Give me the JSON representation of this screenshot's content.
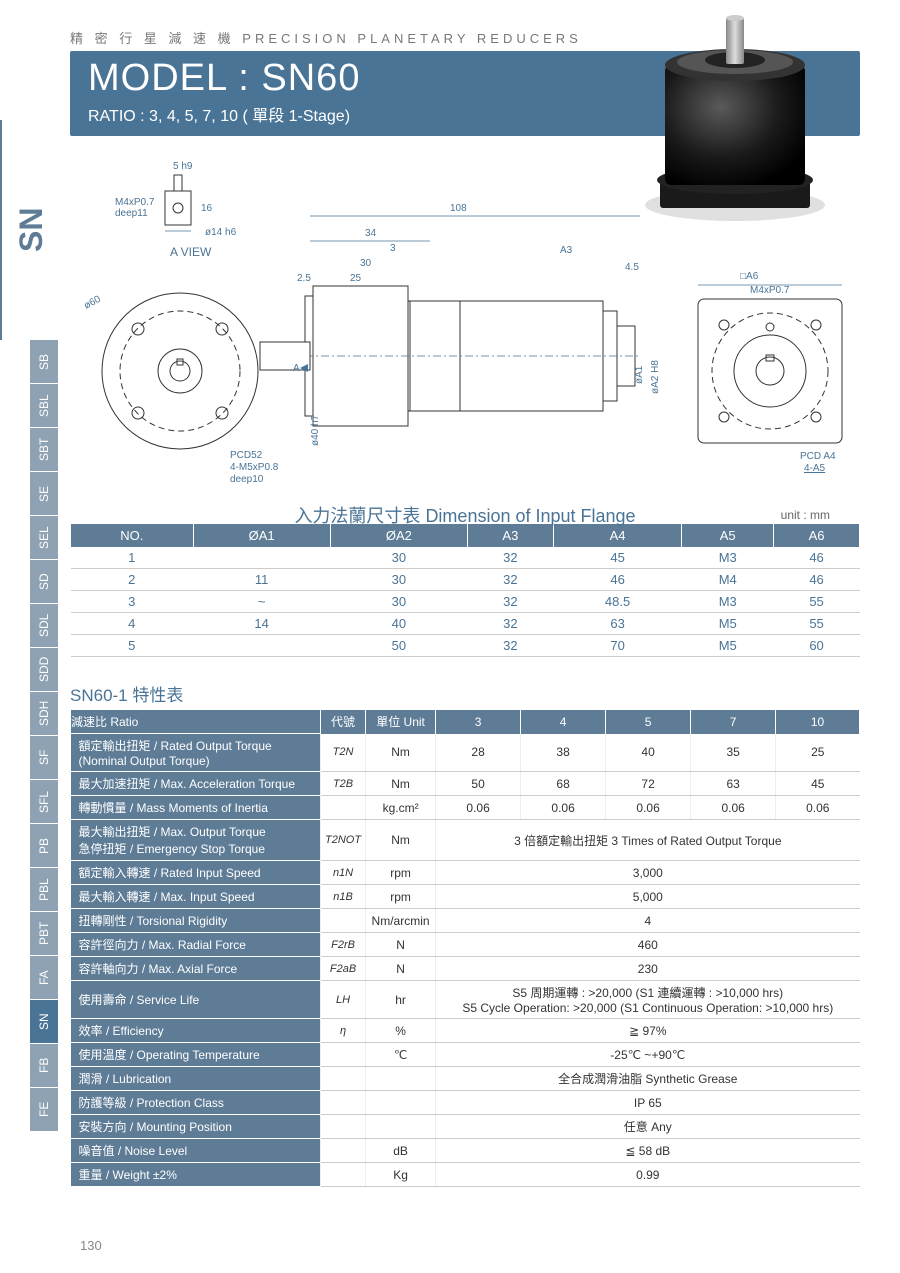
{
  "header": {
    "supertitle": "精 密 行 星 減 速 機  PRECISION PLANETARY REDUCERS",
    "model": "MODEL : SN60",
    "ratio": "RATIO : 3, 4, 5, 7, 10 ( 單段 1-Stage)"
  },
  "side": {
    "big": "SN",
    "tabs": [
      "SB",
      "SBL",
      "SBT",
      "SE",
      "SEL",
      "SD",
      "SDL",
      "SDD",
      "SDH",
      "SF",
      "SFL",
      "PB",
      "PBL",
      "PBT",
      "FA",
      "SN",
      "FB",
      "FE"
    ],
    "active": "SN"
  },
  "diagram": {
    "a_view_label": "A VIEW",
    "top_shaft": "5 h9",
    "m4": "M4xP0.7",
    "deep11": "deep11",
    "phi14": "ø14 h6",
    "sixteen": "16",
    "phi60": "ø60",
    "pcd52": "PCD52",
    "m5": "4-M5xP0.8",
    "deep10": "deep10",
    "len108": "108",
    "len34": "34",
    "len3": "3",
    "len30": "30",
    "len25": "25",
    "len2_5": "2.5",
    "len4_5": "4.5",
    "a3": "A3",
    "phi40": "ø40 h7",
    "a_arrow": "A",
    "phi_a1": "øA1",
    "phi_a2": "øA2 H8",
    "sq_a6": "□A6",
    "m4r": "M4xP0.7",
    "pcd_a4": "PCD A4",
    "four_a5": "4-A5"
  },
  "dim_table": {
    "title": "入力法蘭尺寸表 Dimension of Input Flange",
    "unit": "unit : mm",
    "headers": [
      "NO.",
      "ØA1",
      "ØA2",
      "A3",
      "A4",
      "A5",
      "A6"
    ],
    "rows": [
      [
        "1",
        "",
        "30",
        "32",
        "45",
        "M3",
        "46"
      ],
      [
        "2",
        "11",
        "30",
        "32",
        "46",
        "M4",
        "46"
      ],
      [
        "3",
        "~",
        "30",
        "32",
        "48.5",
        "M3",
        "55"
      ],
      [
        "4",
        "14",
        "40",
        "32",
        "63",
        "M5",
        "55"
      ],
      [
        "5",
        "",
        "50",
        "32",
        "70",
        "M5",
        "60"
      ]
    ]
  },
  "spec": {
    "title": "SN60-1 特性表",
    "header_row": {
      "ratio": "減速比 Ratio",
      "sym": "代號",
      "unit": "單位 Unit",
      "vals": [
        "3",
        "4",
        "5",
        "7",
        "10"
      ]
    },
    "rows": [
      {
        "label": "額定輸出扭矩 / Rated Output Torque\n(Nominal Output Torque)",
        "sym": "T2N",
        "unit": "Nm",
        "vals": [
          "28",
          "38",
          "40",
          "35",
          "25"
        ]
      },
      {
        "label": "最大加速扭矩 / Max. Acceleration Torque",
        "sym": "T2B",
        "unit": "Nm",
        "vals": [
          "50",
          "68",
          "72",
          "63",
          "45"
        ]
      },
      {
        "label": "轉動慣量 / Mass Moments of Inertia",
        "sym": "",
        "unit": "kg.cm²",
        "vals": [
          "0.06",
          "0.06",
          "0.06",
          "0.06",
          "0.06"
        ]
      },
      {
        "label": "最大輸出扭矩 / Max. Output Torque\n急停扭矩 / Emergency Stop Torque",
        "sym": "T2NOT",
        "unit": "Nm",
        "span": "3 倍額定輸出扭矩 3 Times of Rated Output Torque"
      },
      {
        "label": "額定輸入轉速 / Rated Input Speed",
        "sym": "n1N",
        "unit": "rpm",
        "span": "3,000"
      },
      {
        "label": "最大輸入轉速 / Max. Input Speed",
        "sym": "n1B",
        "unit": "rpm",
        "span": "5,000"
      },
      {
        "label": "扭轉剛性 / Torsional Rigidity",
        "sym": "",
        "unit": "Nm/arcmin",
        "span": "4"
      },
      {
        "label": "容許徑向力 / Max. Radial Force",
        "sym": "F2rB",
        "unit": "N",
        "span": "460"
      },
      {
        "label": "容許軸向力 / Max. Axial Force",
        "sym": "F2aB",
        "unit": "N",
        "span": "230"
      },
      {
        "label": "使用壽命 / Service Life",
        "sym": "LH",
        "unit": "hr",
        "span": "S5 周期運轉 : >20,000 (S1 連續運轉 : >10,000 hrs)\nS5 Cycle Operation: >20,000 (S1 Continuous Operation: >10,000 hrs)"
      },
      {
        "label": "效率 / Efficiency",
        "sym": "η",
        "unit": "%",
        "span": "≧ 97%"
      },
      {
        "label": "使用溫度 / Operating Temperature",
        "sym": "",
        "unit": "℃",
        "span": "-25℃ ~+90℃"
      },
      {
        "label": "潤滑 / Lubrication",
        "sym": "",
        "unit": "",
        "span": "全合成潤滑油脂 Synthetic Grease"
      },
      {
        "label": "防護等級 / Protection Class",
        "sym": "",
        "unit": "",
        "span": "IP 65"
      },
      {
        "label": "安裝方向 / Mounting Position",
        "sym": "",
        "unit": "",
        "span": "任意 Any"
      },
      {
        "label": "噪音值 / Noise Level",
        "sym": "",
        "unit": "dB",
        "span": "≦ 58 dB"
      },
      {
        "label": "重量 / Weight ±2%",
        "sym": "",
        "unit": "Kg",
        "span": "0.99"
      }
    ]
  },
  "page_num": "130",
  "colors": {
    "brand": "#4a7496",
    "tab": "#8ea2b3",
    "tab_active": "#4a7496",
    "header_bg": "#5e7c96"
  }
}
